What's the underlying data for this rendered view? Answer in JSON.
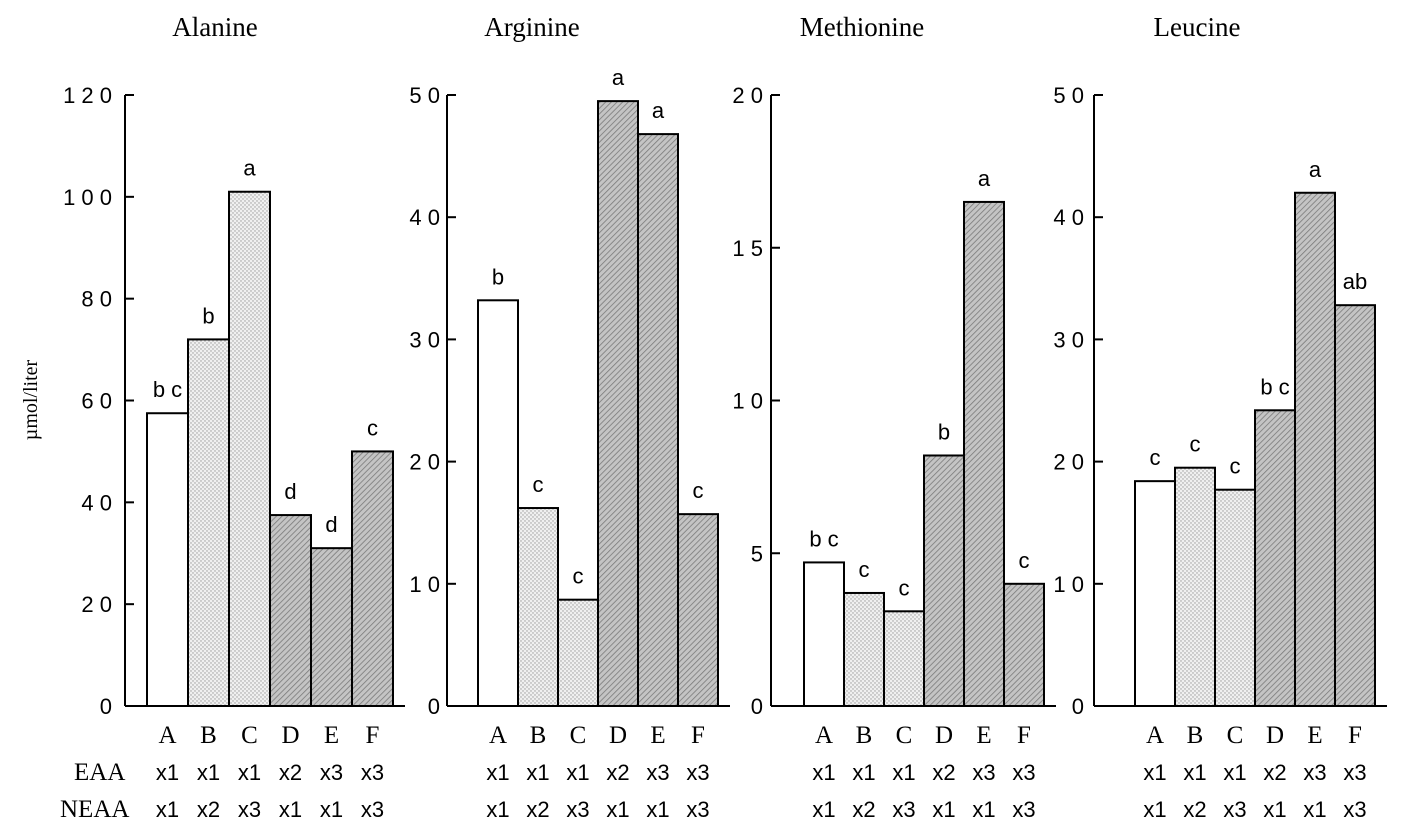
{
  "ylabel": "µmol/liter",
  "row_labels": {
    "eaa": "EAA",
    "neaa": "NEAA"
  },
  "categories": [
    "A",
    "B",
    "C",
    "D",
    "E",
    "F"
  ],
  "eaa_levels": [
    "x1",
    "x1",
    "x1",
    "x2",
    "x3",
    "x3"
  ],
  "neaa_levels": [
    "x1",
    "x2",
    "x3",
    "x1",
    "x1",
    "x3"
  ],
  "fills": [
    "white",
    "light-dotted",
    "light-dotted",
    "dark-hatched",
    "dark-hatched",
    "dark-hatched"
  ],
  "colors": {
    "axis": "#000000",
    "light_fill": "#ececec",
    "dark_fill": "#b8b8b8"
  },
  "chart_data": [
    {
      "type": "bar",
      "title": "Alanine",
      "categories": [
        "A",
        "B",
        "C",
        "D",
        "E",
        "F"
      ],
      "values": [
        57.5,
        72,
        101,
        37.5,
        31,
        50
      ],
      "significance": [
        "b c",
        "b",
        "a",
        "d",
        "d",
        "c"
      ],
      "ylim": [
        0,
        120
      ],
      "yticks": [
        0,
        20,
        40,
        60,
        80,
        100,
        120
      ],
      "ytick_labels": [
        "0",
        "2 0",
        "4 0",
        "6 0",
        "8 0",
        "1 0 0",
        "1 2 0"
      ],
      "ylabel": "µmol/liter"
    },
    {
      "type": "bar",
      "title": "Arginine",
      "categories": [
        "A",
        "B",
        "C",
        "D",
        "E",
        "F"
      ],
      "values": [
        33.2,
        16.2,
        8.7,
        49.5,
        46.8,
        15.7
      ],
      "significance": [
        "b",
        "c",
        "c",
        "a",
        "a",
        "c"
      ],
      "ylim": [
        0,
        50
      ],
      "yticks": [
        0,
        10,
        20,
        30,
        40,
        50
      ],
      "ytick_labels": [
        "0",
        "1 0",
        "2 0",
        "3 0",
        "4 0",
        "5 0"
      ]
    },
    {
      "type": "bar",
      "title": "Methionine",
      "categories": [
        "A",
        "B",
        "C",
        "D",
        "E",
        "F"
      ],
      "values": [
        4.7,
        3.7,
        3.1,
        8.2,
        16.5,
        4.0
      ],
      "significance": [
        "b c",
        "c",
        "c",
        "b",
        "a",
        "c"
      ],
      "ylim": [
        0,
        20
      ],
      "yticks": [
        0,
        5,
        10,
        15,
        20
      ],
      "ytick_labels": [
        "0",
        "5",
        "1 0",
        "1 5",
        "2 0"
      ]
    },
    {
      "type": "bar",
      "title": "Leucine",
      "categories": [
        "A",
        "B",
        "C",
        "D",
        "E",
        "F"
      ],
      "values": [
        18.4,
        19.5,
        17.7,
        24.2,
        42,
        32.8
      ],
      "significance": [
        "c",
        "c",
        "c",
        "b c",
        "a",
        "ab"
      ],
      "ylim": [
        0,
        50
      ],
      "yticks": [
        0,
        10,
        20,
        30,
        40,
        50
      ],
      "ytick_labels": [
        "0",
        "1 0",
        "2 0",
        "3 0",
        "4 0",
        "5 0"
      ]
    }
  ]
}
